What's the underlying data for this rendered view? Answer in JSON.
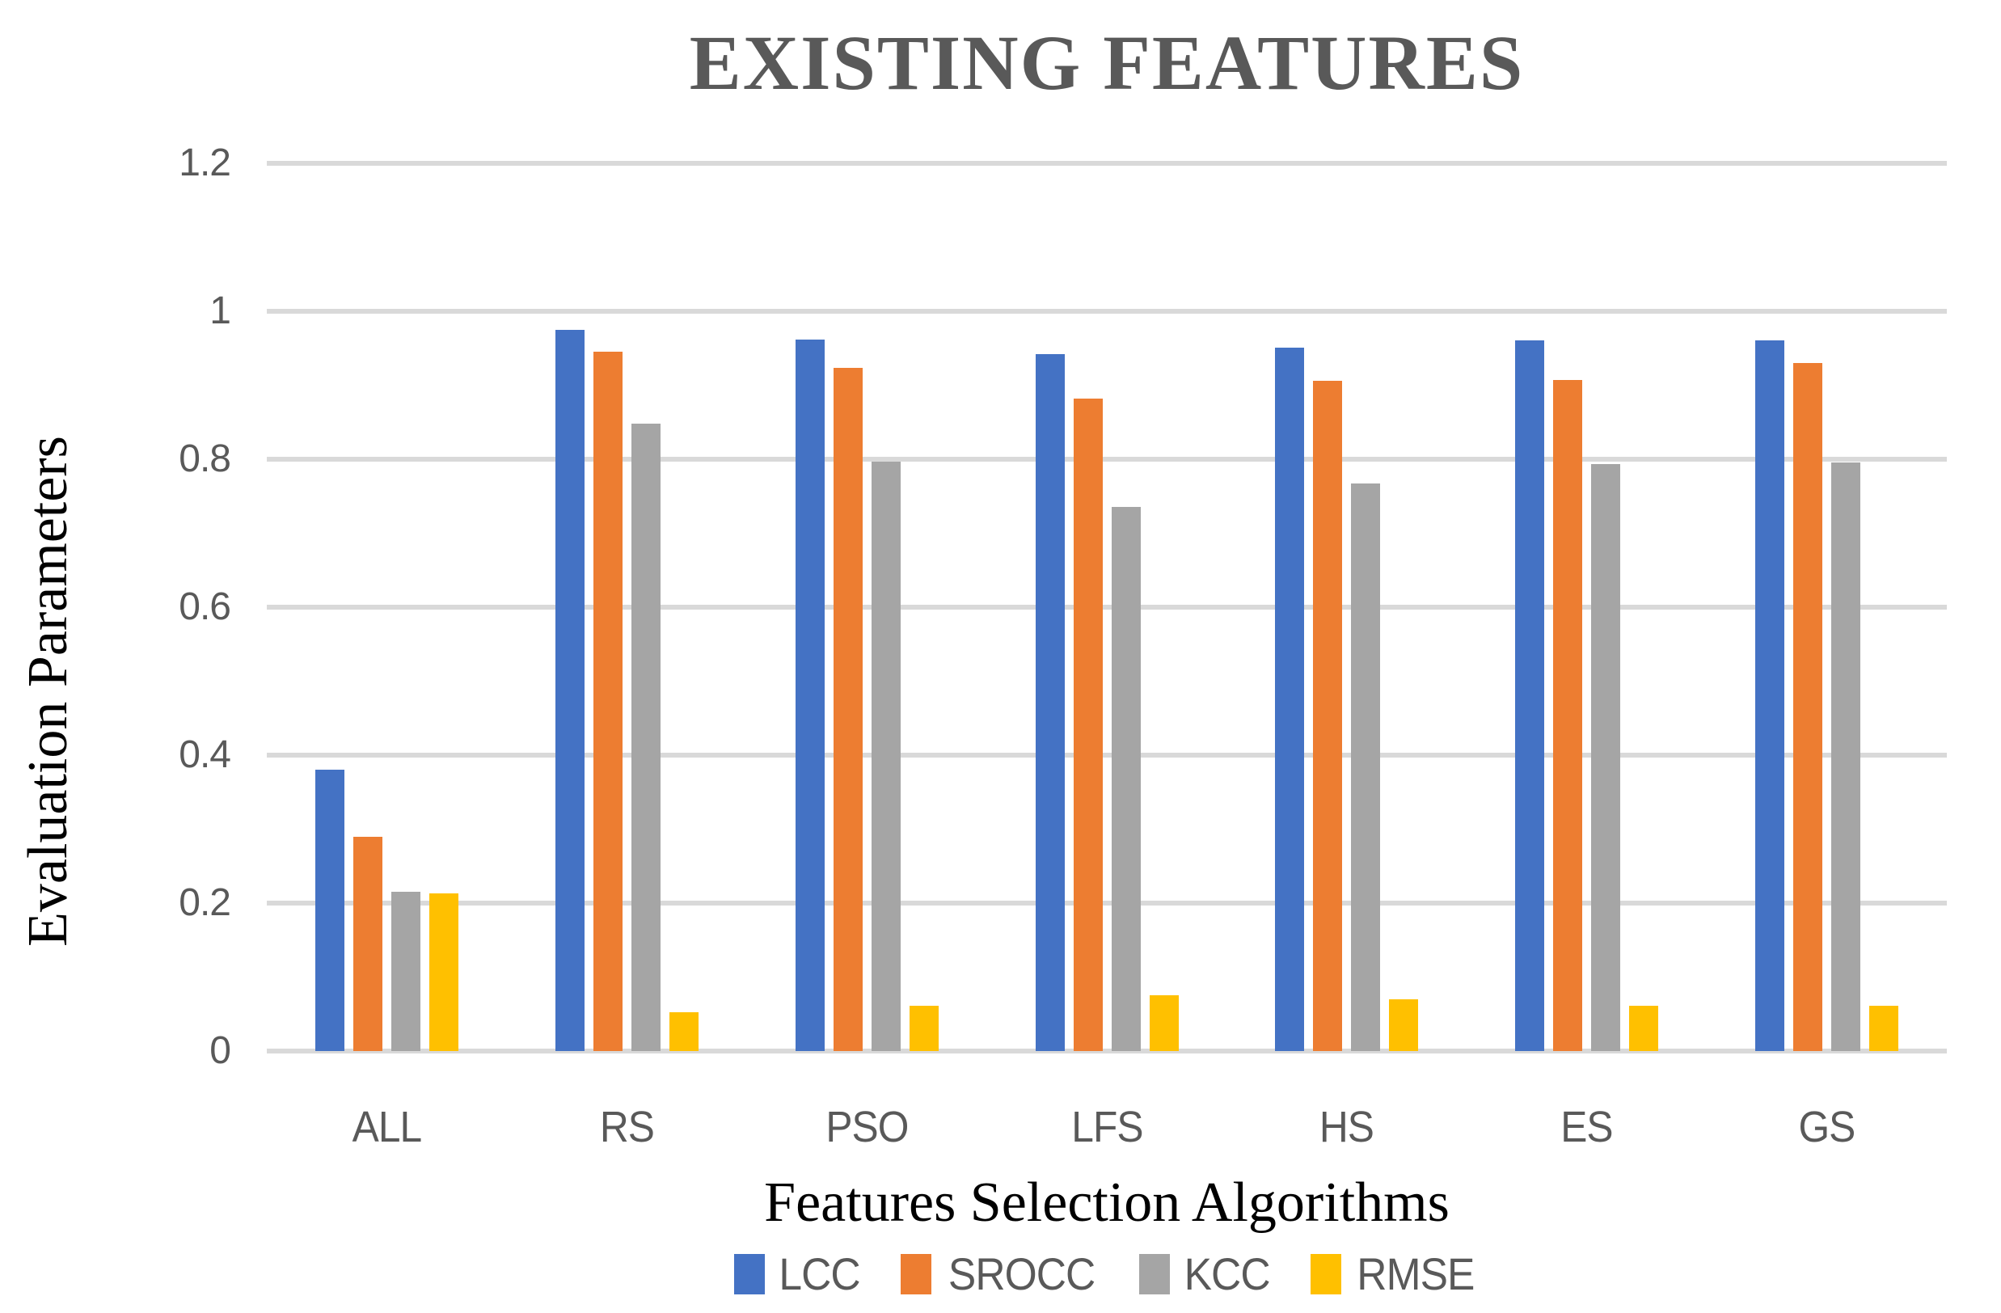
{
  "chart_data": {
    "type": "bar",
    "title": "EXISTING FEATURES",
    "xlabel": "Features Selection Algorithms",
    "ylabel": "Evaluation Parameters",
    "categories": [
      "ALL",
      "RS",
      "PSO",
      "LFS",
      "HS",
      "ES",
      "GS"
    ],
    "series": [
      {
        "name": "LCC",
        "color": "#4472C4",
        "values": [
          0.38,
          0.975,
          0.962,
          0.942,
          0.951,
          0.961,
          0.961
        ]
      },
      {
        "name": "SROCC",
        "color": "#ED7D31",
        "values": [
          0.29,
          0.945,
          0.924,
          0.882,
          0.906,
          0.907,
          0.93
        ]
      },
      {
        "name": "KCC",
        "color": "#A5A5A5",
        "values": [
          0.215,
          0.848,
          0.797,
          0.735,
          0.767,
          0.794,
          0.796
        ]
      },
      {
        "name": "RMSE",
        "color": "#FFC000",
        "values": [
          0.213,
          0.053,
          0.061,
          0.075,
          0.07,
          0.061,
          0.061
        ]
      }
    ],
    "ylim": [
      0,
      1.2
    ],
    "yticks": [
      0,
      0.2,
      0.4,
      0.6,
      0.8,
      1,
      1.2
    ],
    "ytick_labels": [
      "0",
      "0.2",
      "0.4",
      "0.6",
      "0.8",
      "1",
      "1.2"
    ],
    "grid": true,
    "legend_position": "bottom",
    "colors": {
      "gridline": "#D9D9D9",
      "tick_text": "#595959",
      "title_text": "#595959",
      "axis_title_text": "#000000",
      "background": "#FFFFFF"
    }
  }
}
